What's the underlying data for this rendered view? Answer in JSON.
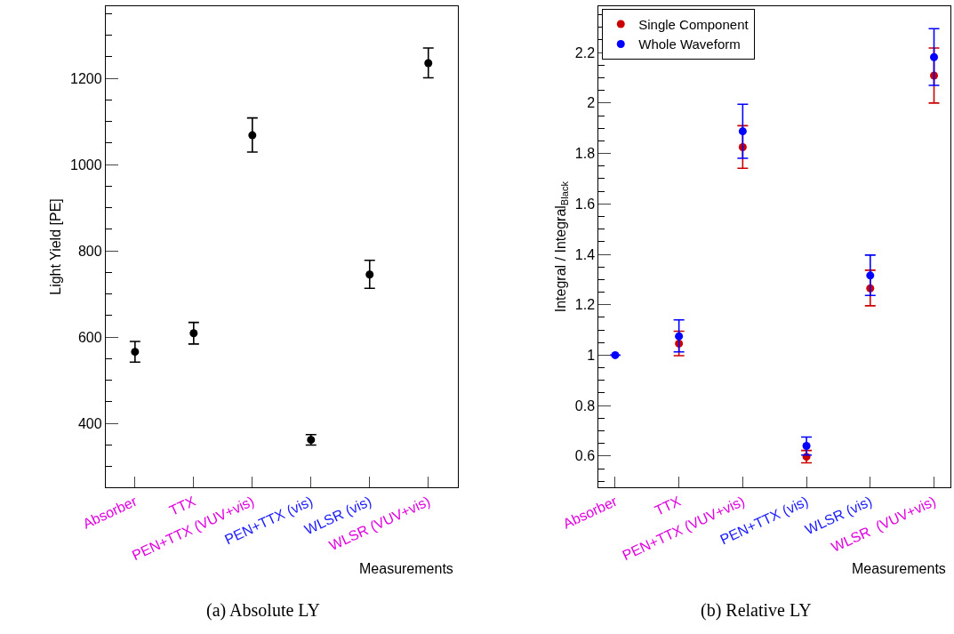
{
  "chart_data": [
    {
      "type": "scatter",
      "categories": [
        "Absorber",
        "TTX",
        "PEN+TTX (VUV+vis)",
        "PEN+TTX (vis)",
        "WLSR (vis)",
        "WLSR (VUV+vis)"
      ],
      "xlabel": "Measurements",
      "ylabel": "Light Yield [PE]",
      "annotations": [
        "(a) Absolute LY"
      ],
      "marker": "circle",
      "legend": false,
      "series": [
        {
          "color": "#000000",
          "values": [
            566,
            609,
            1068,
            362,
            745,
            1235
          ],
          "errors": [
            [
              542,
              590
            ],
            [
              584,
              634
            ],
            [
              1029,
              1108
            ],
            [
              350,
              374
            ],
            [
              713,
              778
            ],
            [
              1201,
              1270
            ]
          ]
        }
      ],
      "ylim": [
        252,
        1367
      ],
      "yticks": [
        {
          "value": 300,
          "label": null
        },
        {
          "value": 350,
          "label": null
        },
        400,
        {
          "value": 450,
          "label": null
        },
        {
          "value": 500,
          "label": null
        },
        {
          "value": 550,
          "label": null
        },
        600,
        {
          "value": 650,
          "label": null
        },
        {
          "value": 700,
          "label": null
        },
        {
          "value": 750,
          "label": null
        },
        800,
        {
          "value": 850,
          "label": null
        },
        {
          "value": 900,
          "label": null
        },
        {
          "value": 950,
          "label": null
        },
        1000,
        {
          "value": 1050,
          "label": null
        },
        {
          "value": 1100,
          "label": null
        },
        {
          "value": 1150,
          "label": null
        },
        1200,
        {
          "value": 1250,
          "label": null
        },
        {
          "value": 1300,
          "label": null
        },
        {
          "value": 1350,
          "label": null
        }
      ]
    },
    {
      "type": "scatter",
      "categories": [
        "Absorber",
        "TTX",
        "PEN+TTX (VUV+vis)",
        "PEN+TTX (vis)",
        "WLSR (vis)",
        "WLSR  (VUV+vis)"
      ],
      "xlabel": "Measurements",
      "ylabel": "Integral / Integral$_{Black}$",
      "annotations": [
        "(b) Relative LY"
      ],
      "marker": "circle",
      "legend": "top left",
      "series": [
        {
          "name": "Single Component",
          "color": "#cc0000",
          "values": [
            null,
            1.046,
            1.825,
            0.597,
            1.265,
            2.109
          ],
          "errors": [
            null,
            [
              0.998,
              1.095
            ],
            [
              1.741,
              1.91
            ],
            [
              0.573,
              0.622
            ],
            [
              1.196,
              1.337
            ],
            [
              2.0,
              2.218
            ]
          ]
        },
        {
          "name": "Whole Waveform",
          "color": "#0000ff",
          "values": [
            1.0,
            1.075,
            1.888,
            0.64,
            1.316,
            2.182
          ],
          "errors": [
            null,
            [
              1.013,
              1.14
            ],
            [
              1.781,
              1.995
            ],
            [
              0.604,
              0.675
            ],
            [
              1.237,
              1.397
            ],
            [
              2.07,
              2.295
            ]
          ]
        }
      ],
      "ylim": [
        0.476,
        2.384
      ],
      "yticks": [
        {
          "value": 0.5,
          "label": null
        },
        {
          "value": 0.55,
          "label": null
        },
        0.6,
        {
          "value": 0.65,
          "label": null
        },
        {
          "value": 0.7,
          "label": null
        },
        {
          "value": 0.75,
          "label": null
        },
        0.8,
        {
          "value": 0.85,
          "label": null
        },
        {
          "value": 0.9,
          "label": null
        },
        {
          "value": 0.95,
          "label": null
        },
        1,
        {
          "value": 1.05,
          "label": null
        },
        {
          "value": 1.1,
          "label": null
        },
        {
          "value": 1.15,
          "label": null
        },
        1.2,
        {
          "value": 1.25,
          "label": null
        },
        {
          "value": 1.3,
          "label": null
        },
        {
          "value": 1.35,
          "label": null
        },
        1.4,
        {
          "value": 1.45,
          "label": null
        },
        {
          "value": 1.5,
          "label": null
        },
        {
          "value": 1.55,
          "label": null
        },
        1.6,
        {
          "value": 1.65,
          "label": null
        },
        {
          "value": 1.7,
          "label": null
        },
        {
          "value": 1.75,
          "label": null
        },
        1.8,
        {
          "value": 1.85,
          "label": null
        },
        {
          "value": 1.9,
          "label": null
        },
        {
          "value": 1.95,
          "label": null
        },
        2,
        {
          "value": 2.05,
          "label": null
        },
        {
          "value": 2.1,
          "label": null
        },
        {
          "value": 2.15,
          "label": null
        },
        2.2,
        {
          "value": 2.25,
          "label": null
        },
        {
          "value": 2.3,
          "label": null
        },
        {
          "value": 2.35,
          "label": null
        }
      ]
    }
  ]
}
